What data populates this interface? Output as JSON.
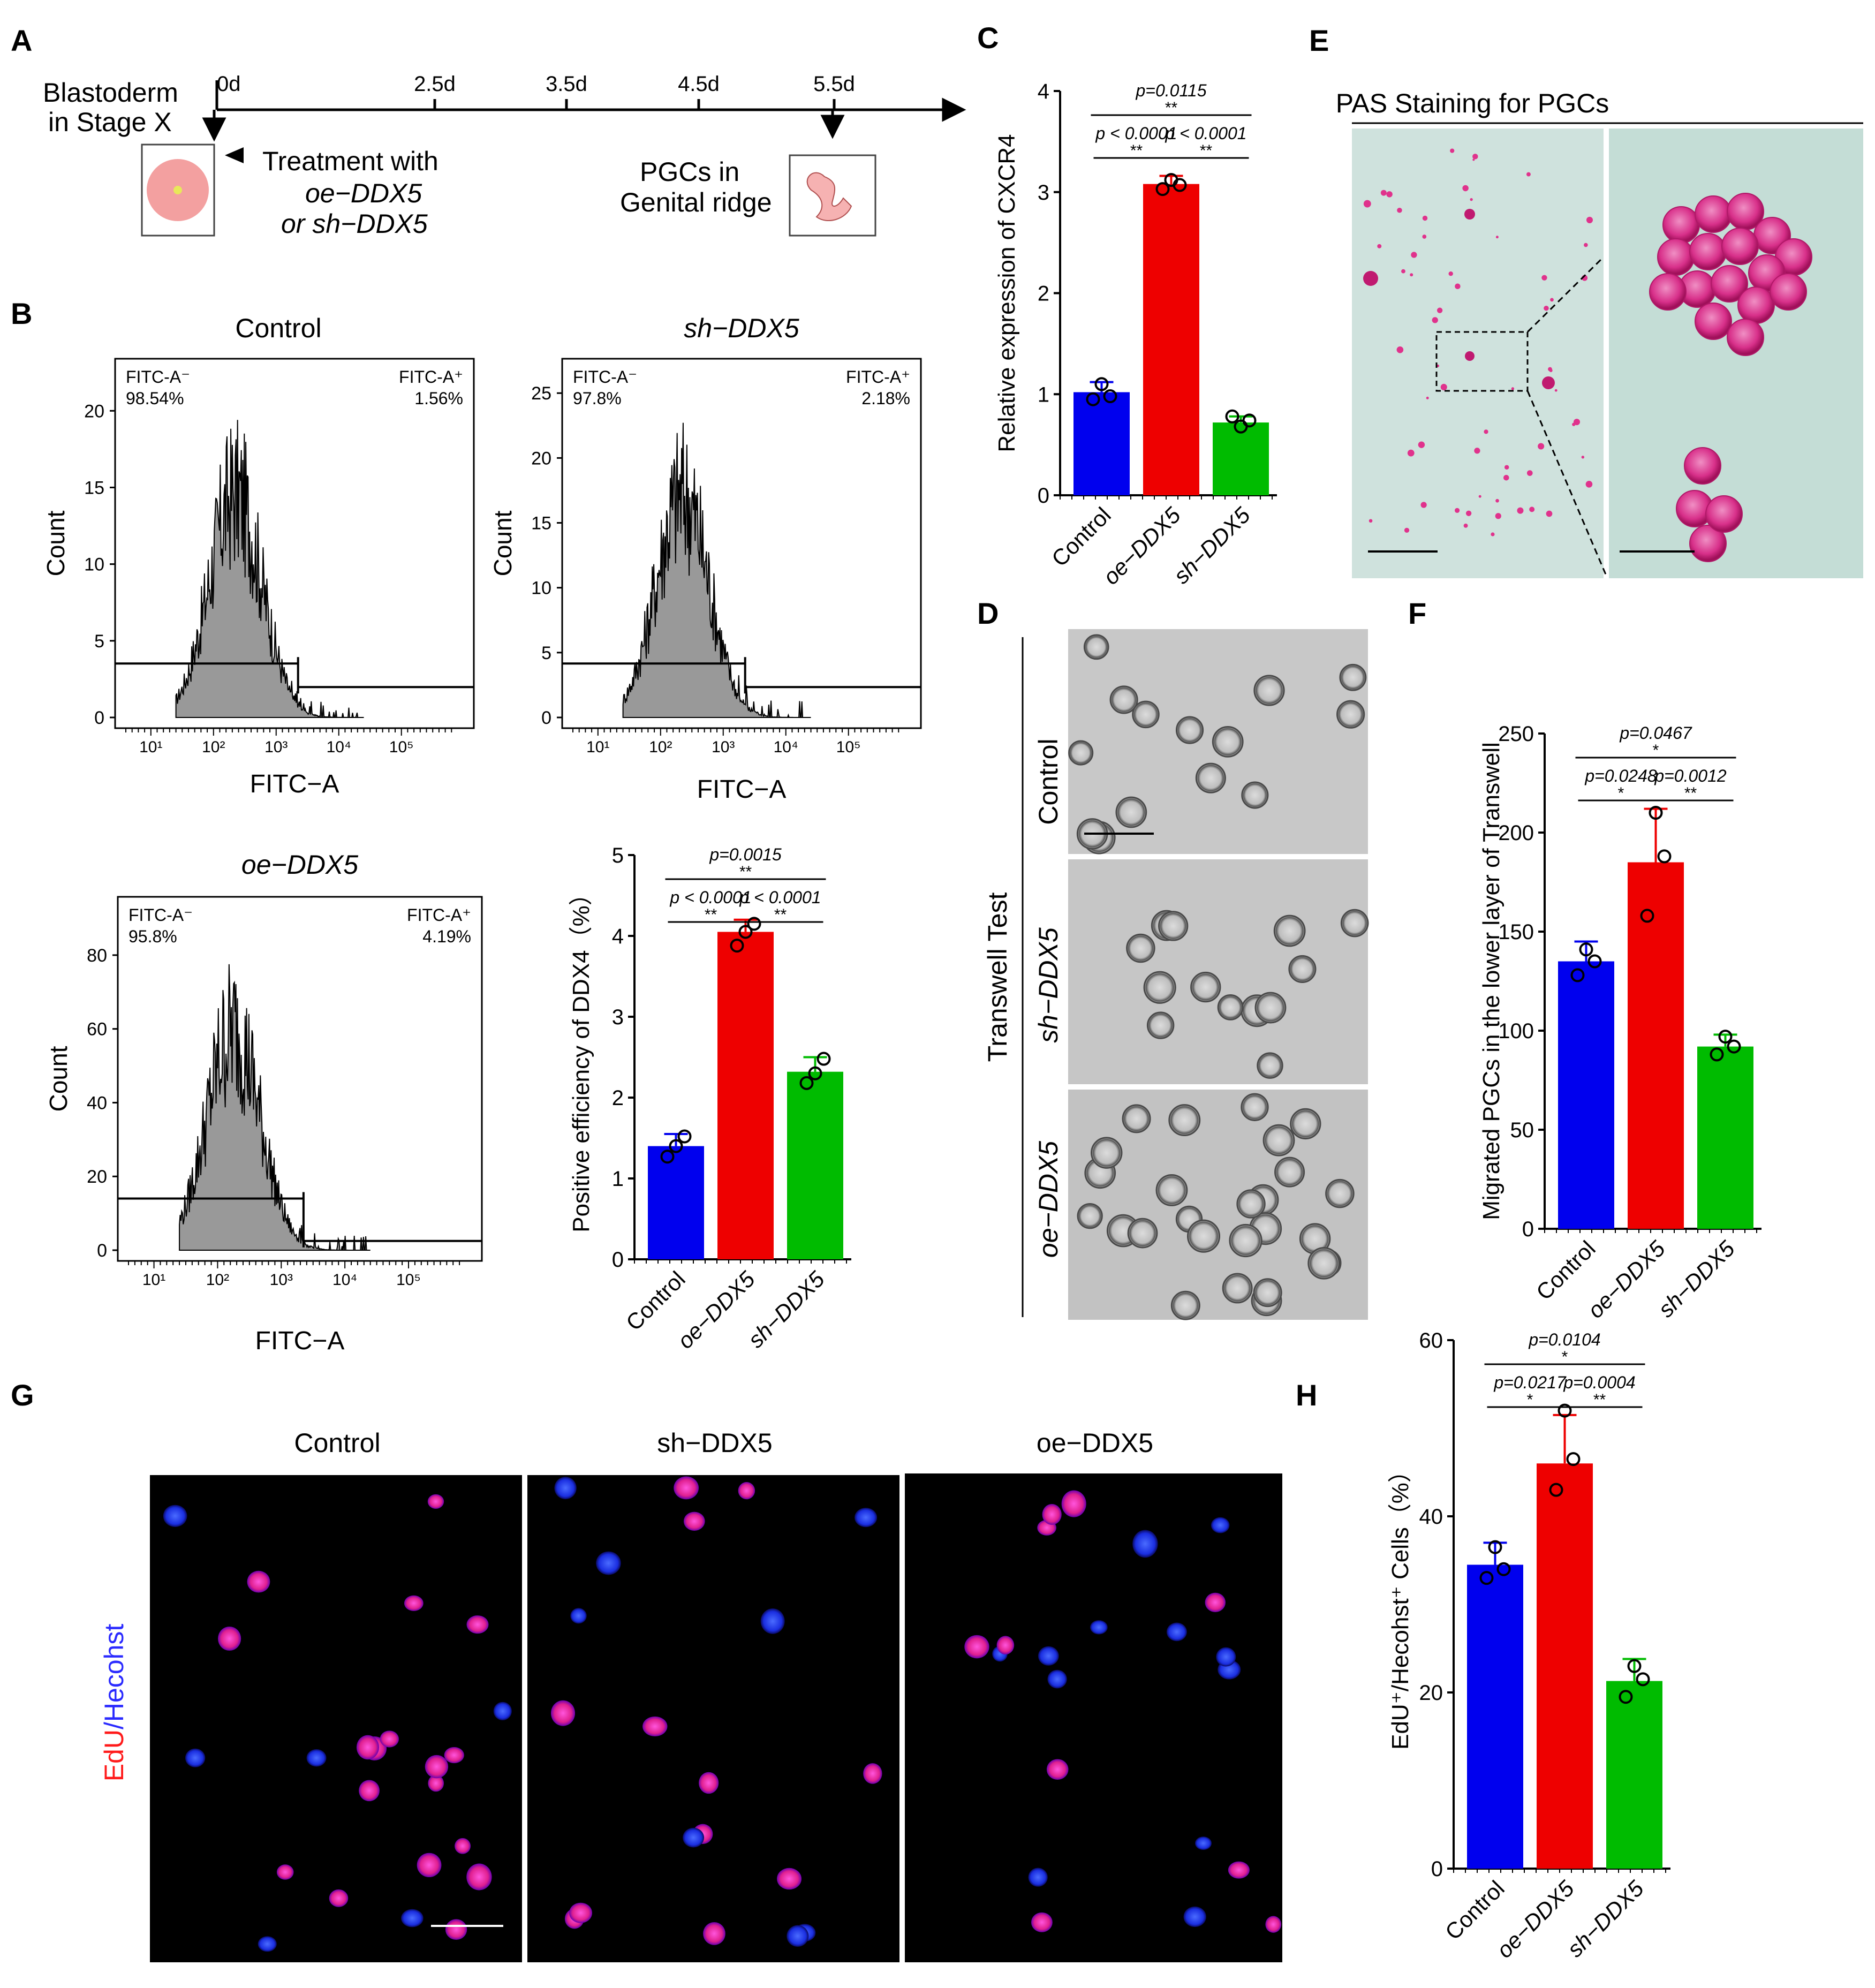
{
  "colors": {
    "control": "#0000ee",
    "oe": "#ee0000",
    "sh": "#00bb00",
    "plate": "#cde3de",
    "pas": "#e0328c",
    "micro": "#c4c4c4",
    "fluor_bg": "#000000"
  },
  "panels": {
    "A": "A",
    "B": "B",
    "C": "C",
    "D": "D",
    "E": "E",
    "F": "F",
    "G": "G",
    "H": "H"
  },
  "A": {
    "blastoderm_l1": "Blastoderm",
    "blastoderm_l2": "in Stage X",
    "ticks": [
      "0d",
      "2.5d",
      "3.5d",
      "4.5d",
      "5.5d"
    ],
    "treat_l1": "Treatment with",
    "treat_l2": "oe−DDX5",
    "treat_l3": "or sh−DDX5",
    "pgc_l1": "PGCs in",
    "pgc_l2": "Genital ridge"
  },
  "B": {
    "xlabel": "FITC−A",
    "ylabel": "Count",
    "xticks": [
      "10¹",
      "10²",
      "10³",
      "10⁴",
      "10⁵"
    ],
    "hists": [
      {
        "title": "Control",
        "neg_label": "FITC-A⁻",
        "neg_val": "98.54%",
        "pos_label": "FITC-A⁺",
        "pos_val": "1.56%",
        "yticks": [
          "0",
          "5",
          "10",
          "15",
          "20"
        ],
        "ymax": 22
      },
      {
        "title": "sh−DDX5",
        "neg_label": "FITC-A⁻",
        "neg_val": "97.8%",
        "pos_label": "FITC-A⁺",
        "pos_val": "2.18%",
        "yticks": [
          "0",
          "5",
          "10",
          "15",
          "20",
          "25"
        ],
        "ymax": 26
      },
      {
        "title": "oe−DDX5",
        "neg_label": "FITC-A⁻",
        "neg_val": "95.8%",
        "pos_label": "FITC-A⁺",
        "pos_val": "4.19%",
        "yticks": [
          "0",
          "20",
          "40",
          "60",
          "80"
        ],
        "ymax": 90
      }
    ]
  },
  "D": {
    "side_label": "Transwell Test",
    "rows": [
      "Control",
      "sh−DDX5",
      "oe−DDX5"
    ]
  },
  "E": {
    "title": "PAS Staining for PGCs"
  },
  "G": {
    "cols": [
      "Control",
      "sh−DDX5",
      "oe−DDX5"
    ],
    "ylab_red": "EdU",
    "ylab_blue": "/Hecohst"
  },
  "chart_data": [
    {
      "id": "B",
      "type": "bar",
      "categories": [
        "Control",
        "oe−DDX5",
        "sh−DDX5"
      ],
      "values": [
        1.4,
        4.05,
        2.32
      ],
      "errors": [
        0.15,
        0.15,
        0.18
      ],
      "points": [
        [
          1.27,
          1.4,
          1.52
        ],
        [
          3.88,
          4.05,
          4.15
        ],
        [
          2.18,
          2.3,
          2.48
        ]
      ],
      "ylabel": "Positive efficiency of DDX4（%）",
      "ylim": [
        0,
        5
      ],
      "yticks": [
        "0",
        "1",
        "2",
        "3",
        "4",
        "5"
      ],
      "sig": [
        {
          "p": "p=0.0015",
          "stars": "**"
        },
        {
          "p": "p < 0.0001",
          "stars": "**"
        },
        {
          "p": "p < 0.0001",
          "stars": "**"
        }
      ]
    },
    {
      "id": "C",
      "type": "bar",
      "categories": [
        "Control",
        "oe−DDX5",
        "sh−DDX5"
      ],
      "values": [
        1.02,
        3.08,
        0.72
      ],
      "errors": [
        0.1,
        0.08,
        0.06
      ],
      "points": [
        [
          0.95,
          1.1,
          0.98
        ],
        [
          3.03,
          3.12,
          3.07
        ],
        [
          0.78,
          0.68,
          0.74
        ]
      ],
      "ylabel": "Relative expression of CXCR4",
      "ylim": [
        0,
        4
      ],
      "yticks": [
        "0",
        "1",
        "2",
        "3",
        "4"
      ],
      "sig": [
        {
          "p": "p=0.0115",
          "stars": "**"
        },
        {
          "p": "p < 0.0001",
          "stars": "**"
        },
        {
          "p": "p < 0.0001",
          "stars": "**"
        }
      ]
    },
    {
      "id": "F",
      "type": "bar",
      "categories": [
        "Control",
        "oe−DDX5",
        "sh−DDX5"
      ],
      "values": [
        135,
        185,
        92
      ],
      "errors": [
        10,
        27,
        6
      ],
      "points": [
        [
          128,
          141,
          135
        ],
        [
          158,
          210,
          188
        ],
        [
          88,
          97,
          92
        ]
      ],
      "ylabel": "Migrated PGCs in the lower layer of Transwell",
      "ylim": [
        0,
        250
      ],
      "yticks": [
        "0",
        "50",
        "100",
        "150",
        "200",
        "250"
      ],
      "sig": [
        {
          "p": "p=0.0467",
          "stars": "*"
        },
        {
          "p": "p=0.0248",
          "stars": "*"
        },
        {
          "p": "p=0.0012",
          "stars": "**"
        }
      ]
    },
    {
      "id": "H",
      "type": "bar",
      "categories": [
        "Control",
        "oe−DDX5",
        "sh−DDX5"
      ],
      "values": [
        34.5,
        46,
        21.3
      ],
      "errors": [
        2.5,
        5.5,
        2.5
      ],
      "points": [
        [
          33,
          36.5,
          34
        ],
        [
          43,
          52,
          46.5
        ],
        [
          19.5,
          23,
          21.5
        ]
      ],
      "ylabel": "EdU⁺/Hecohst⁺ Cells（%）",
      "ylim": [
        0,
        60
      ],
      "yticks": [
        "0",
        "20",
        "40",
        "60"
      ],
      "sig": [
        {
          "p": "p=0.0104",
          "stars": "*"
        },
        {
          "p": "p=0.0217",
          "stars": "*"
        },
        {
          "p": "p=0.0004",
          "stars": "**"
        }
      ]
    }
  ]
}
